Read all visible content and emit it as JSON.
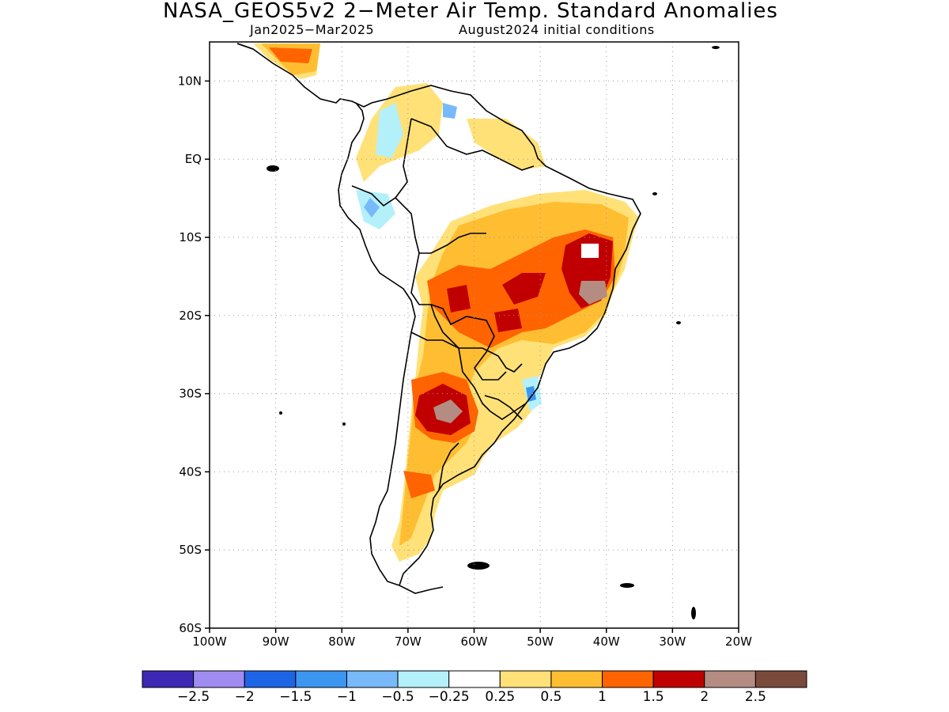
{
  "title": "NASA_GEOS5v2 2−Meter Air Temp. Standard Anomalies",
  "subtitle_left": "Jan2025−Mar2025",
  "subtitle_right": "August2024 initial conditions",
  "map": {
    "lon_range": [
      -100,
      -20
    ],
    "lat_range": [
      -60,
      15
    ],
    "lat_ticks": [
      {
        "value": 10,
        "label": "10N"
      },
      {
        "value": 0,
        "label": "EQ"
      },
      {
        "value": -10,
        "label": "10S"
      },
      {
        "value": -20,
        "label": "20S"
      },
      {
        "value": -30,
        "label": "30S"
      },
      {
        "value": -40,
        "label": "40S"
      },
      {
        "value": -50,
        "label": "50S"
      },
      {
        "value": -60,
        "label": "60S"
      }
    ],
    "lon_ticks": [
      {
        "value": -100,
        "label": "100W"
      },
      {
        "value": -90,
        "label": "90W"
      },
      {
        "value": -80,
        "label": "80W"
      },
      {
        "value": -70,
        "label": "70W"
      },
      {
        "value": -60,
        "label": "60W"
      },
      {
        "value": -50,
        "label": "50W"
      },
      {
        "value": -40,
        "label": "40W"
      },
      {
        "value": -30,
        "label": "30W"
      },
      {
        "value": -20,
        "label": "20W"
      }
    ],
    "grid": "dotted"
  },
  "colorbar": {
    "colors": [
      "#3c28b4",
      "#a08cf0",
      "#1e64e6",
      "#3c96f0",
      "#78b9fa",
      "#b4f0fa",
      "#ffffff",
      "#ffe178",
      "#ffbe32",
      "#ff6400",
      "#c00000",
      "#b48c82",
      "#7a4a3c"
    ],
    "labels": [
      "−2.5",
      "−2",
      "−1.5",
      "−1",
      "−0.5",
      "−0.25",
      "0.25",
      "0.5",
      "1",
      "1.5",
      "2",
      "2.5"
    ]
  },
  "anomaly_regions": [
    {
      "level": "0.5",
      "color": "#ffe178",
      "where": "broad coverage across Brazil and Argentina"
    },
    {
      "level": "1",
      "color": "#ffbe32",
      "where": "central/eastern Brazil, Paraguay, Argentina, Patagonia"
    },
    {
      "level": "1.5",
      "color": "#ff6400",
      "where": "central Brazil, Bolivia, northern Argentina"
    },
    {
      "level": "2",
      "color": "#c00000",
      "where": "eastern Brazil, Paraguay, central Argentina"
    },
    {
      "level": "2.5",
      "color": "#b48c82",
      "where": "small cores in eastern Brazil and central Argentina"
    },
    {
      "level": "-0.5",
      "color": "#b4f0fa",
      "where": "Colombia, Ecuador, Peru coast, Uruguay coast"
    },
    {
      "level": "-1",
      "color": "#78b9fa",
      "where": "scattered spots in Venezuela, Peru, Uruguay"
    }
  ]
}
